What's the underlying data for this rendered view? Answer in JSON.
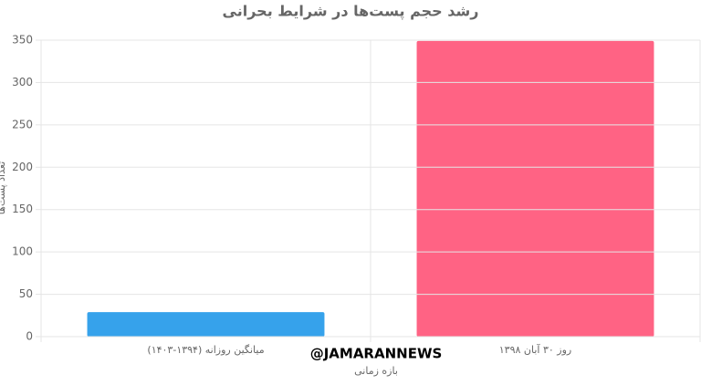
{
  "chart_data": {
    "type": "bar",
    "title": "رشد حجم پست‌ها در شرایط بحرانی",
    "x_label": "بازه زمانی",
    "y_label": "تعداد پست‌ها",
    "watermark": "@JAMARANNEWS",
    "categories": [
      "میانگین روزانه (۱۳۹۴-۱۴۰۳)",
      "روز ۳۰ آبان ۱۳۹۸"
    ],
    "values": [
      29,
      349
    ],
    "colors": [
      "#36a2eb",
      "#ff6384"
    ],
    "ylim": [
      0,
      350
    ],
    "yticks": [
      0,
      50,
      100,
      150,
      200,
      250,
      300,
      350
    ],
    "grid": true
  }
}
